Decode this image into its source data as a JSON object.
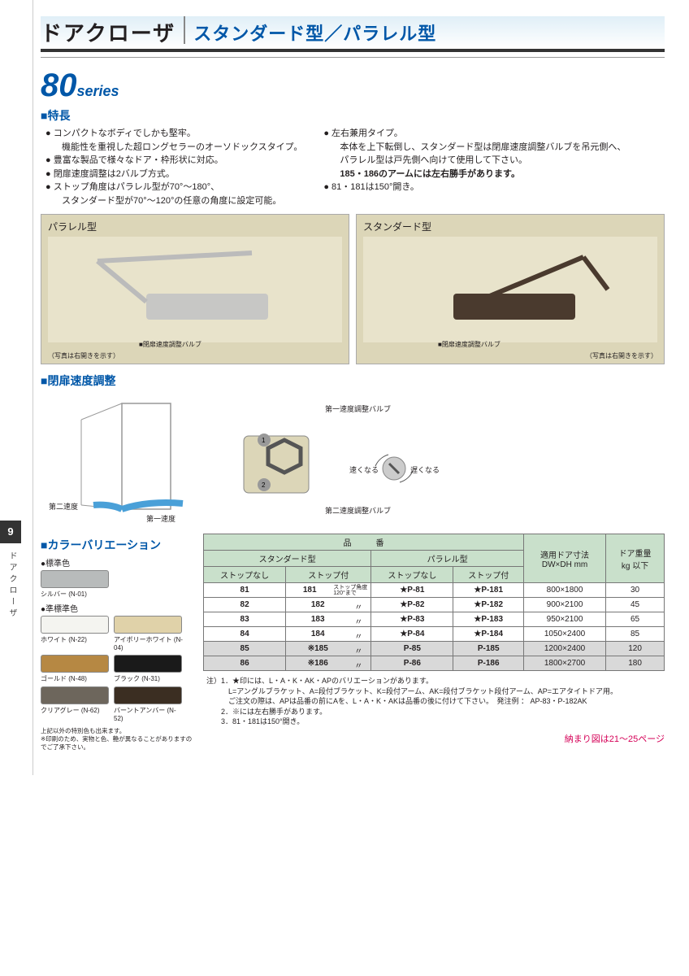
{
  "header": {
    "title": "ドアクローザ",
    "subtitle": "スタンダード型／パラレル型"
  },
  "side_tab": {
    "page": "9",
    "label": "ドアクローザ"
  },
  "series": {
    "num": "80",
    "txt": "series"
  },
  "sections": {
    "features": "■特長",
    "closing": "■閉扉速度調整",
    "colors": "■カラーバリエーション"
  },
  "features_left": [
    "コンパクトなボディでしかも堅牢。",
    "機能性を重視した超ロングセラーのオーソドックスタイプ。",
    "豊富な製品で様々なドア・枠形状に対応。",
    "閉扉速度調整は2バルブ方式。",
    "ストップ角度はパラレル型が70°～180°、",
    "スタンダード型が70°～120°の任意の角度に設定可能。"
  ],
  "features_left_sublines": [
    1,
    5
  ],
  "features_right": [
    "左右兼用タイプ。",
    "本体を上下転倒し、スタンダード型は閉扉速度調整バルブを吊元側へ、",
    "パラレル型は戸先側へ向けて使用して下さい。",
    "185・186のアームには左右勝手があります。",
    "81・181は150°開き。"
  ],
  "features_right_sublines": [
    1,
    2,
    3
  ],
  "features_right_bold": [
    3
  ],
  "img_boxes": {
    "left": {
      "label": "パラレル型",
      "anno": "■閉扉速度調整バルブ",
      "caption": "（写真は右開きを示す）"
    },
    "right": {
      "label": "スタンダード型",
      "anno": "■閉扉速度調整バルブ",
      "caption": "（写真は右開きを示す）"
    }
  },
  "diagram": {
    "valve1": "第一速度調整バルブ",
    "valve2": "第二速度調整バルブ",
    "speed1": "第一速度",
    "speed2": "第二速度",
    "fast": "速くなる",
    "slow": "遅くなる"
  },
  "colors": {
    "std_label": "●標準色",
    "semi_label": "●準標準色",
    "swatches": [
      {
        "hex": "#b8bbbb",
        "name": "シルバー (N-01)"
      },
      {
        "hex": "#f4f4f0",
        "name": "ホワイト (N-22)"
      },
      {
        "hex": "#e0d2a9",
        "name": "アイボリーホワイト (N-04)"
      },
      {
        "hex": "#b68843",
        "name": "ゴールド (N-48)"
      },
      {
        "hex": "#1a1a1a",
        "name": "ブラック (N-31)"
      },
      {
        "hex": "#6d665c",
        "name": "クリアグレー (N-62)"
      },
      {
        "hex": "#3b2e22",
        "name": "バーントアンバー (N-52)"
      }
    ],
    "note": "上記以外の特別色も出来ます。\n※印刷のため、実物と色、艶が異なることがありますのでご了承下さい。"
  },
  "table": {
    "header": {
      "product": "品　　　番",
      "std": "スタンダード型",
      "para": "パラレル型",
      "nostop": "ストップなし",
      "withstop": "ストップ付",
      "doorsize": "適用ドア寸法\nDW×DH mm",
      "weight": "ドア重量\nkg 以下"
    },
    "stop_note": "ストップ角度\n120°まで",
    "ditto": "〃",
    "rows": [
      {
        "a": "81",
        "b": "181",
        "c": "★P-81",
        "d": "★P-181",
        "size": "800×1800",
        "w": "30",
        "grey": false,
        "first": true
      },
      {
        "a": "82",
        "b": "182",
        "c": "★P-82",
        "d": "★P-182",
        "size": "900×2100",
        "w": "45",
        "grey": false
      },
      {
        "a": "83",
        "b": "183",
        "c": "★P-83",
        "d": "★P-183",
        "size": "950×2100",
        "w": "65",
        "grey": false
      },
      {
        "a": "84",
        "b": "184",
        "c": "★P-84",
        "d": "★P-184",
        "size": "1050×2400",
        "w": "85",
        "grey": false
      },
      {
        "a": "85",
        "b": "※185",
        "c": "P-85",
        "d": "P-185",
        "size": "1200×2400",
        "w": "120",
        "grey": true
      },
      {
        "a": "86",
        "b": "※186",
        "c": "P-86",
        "d": "P-186",
        "size": "1800×2700",
        "w": "180",
        "grey": true
      }
    ]
  },
  "notes": [
    "注）1．★印には、L・A・K・AK・APのバリエーションがあります。",
    "　　　L=アングルブラケット、A=段付ブラケット、K=段付アーム、AK=段付ブラケット段付アーム、AP=エアタイトドア用。",
    "　　　ご注文の際は、APは品番の前にAを、L・A・K・AKは品番の後に付けて下さい。　発注例 ： AP-83・P-182AK",
    "　　2．※には左右勝手があります。",
    "　　3．81・181は150°開き。"
  ],
  "page_ref": "納まり図は21～25ページ"
}
